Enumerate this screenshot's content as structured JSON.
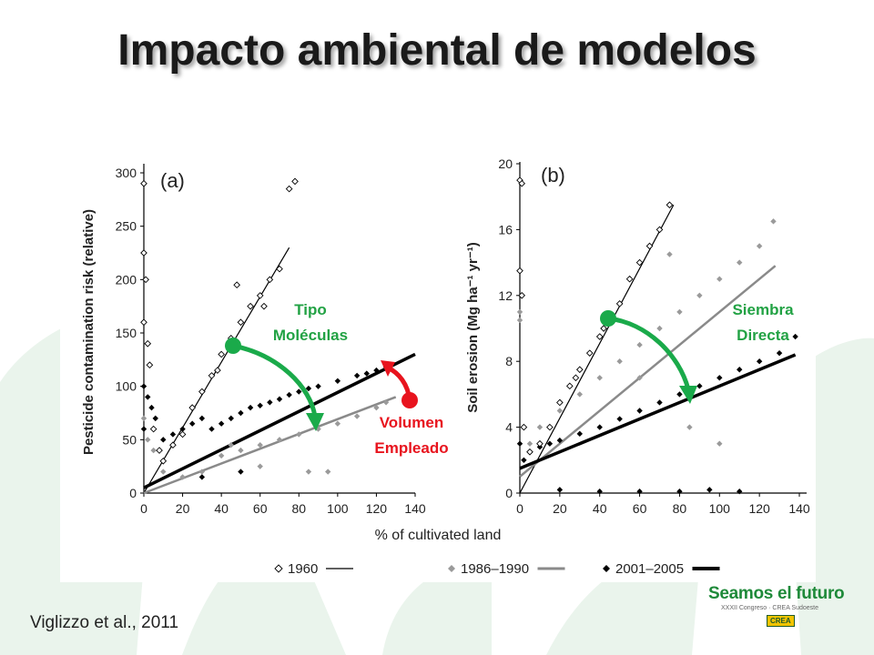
{
  "title": "Impacto ambiental de modelos",
  "citation": "Viglizzo et al., 2011",
  "logo": {
    "main": "Seamos el futuro",
    "sub": "XXXII Congreso · CREA Sudoeste",
    "badge": "CREA"
  },
  "annotations": {
    "tipo": [
      "Tipo",
      "Moléculas"
    ],
    "volumen": [
      "Volumen",
      "Empleado"
    ],
    "siembra": [
      "Siembra",
      "Directa"
    ]
  },
  "colors": {
    "green_arrow": "#1aaa4a",
    "red_arrow": "#e8141e",
    "label_text": "#22a244",
    "volumen_text": "#e8141e",
    "s1960": "#000000",
    "s1986": "#999999",
    "s2001": "#000000"
  },
  "legend": [
    {
      "label": "1960",
      "marker": "open-diamond",
      "line": "thin-black"
    },
    {
      "label": "1986–1990",
      "marker": "grey-diamond",
      "line": "grey"
    },
    {
      "label": "2001–2005",
      "marker": "black-diamond",
      "line": "thick-black"
    }
  ],
  "chart_data": [
    {
      "type": "scatter",
      "panel": "(a)",
      "xlabel": "% of cultivated land",
      "ylabel": "Pesticide contamination risk (relative)",
      "xlim": [
        0,
        140
      ],
      "ylim": [
        0,
        300
      ],
      "xticks": [
        0,
        20,
        40,
        60,
        80,
        100,
        120,
        140
      ],
      "yticks": [
        0,
        50,
        100,
        150,
        200,
        250,
        300
      ],
      "series": [
        {
          "name": "1960",
          "trend": [
            [
              0,
              0
            ],
            [
              75,
              230
            ]
          ],
          "points": [
            [
              0,
              290
            ],
            [
              0,
              225
            ],
            [
              1,
              200
            ],
            [
              0,
              160
            ],
            [
              2,
              140
            ],
            [
              3,
              120
            ],
            [
              5,
              60
            ],
            [
              8,
              40
            ],
            [
              10,
              30
            ],
            [
              15,
              45
            ],
            [
              20,
              55
            ],
            [
              25,
              80
            ],
            [
              30,
              95
            ],
            [
              35,
              110
            ],
            [
              40,
              130
            ],
            [
              45,
              145
            ],
            [
              50,
              160
            ],
            [
              55,
              175
            ],
            [
              60,
              185
            ],
            [
              65,
              200
            ],
            [
              70,
              210
            ],
            [
              75,
              285
            ],
            [
              78,
              292
            ],
            [
              62,
              175
            ],
            [
              48,
              195
            ],
            [
              38,
              115
            ]
          ]
        },
        {
          "name": "1986–1990",
          "trend": [
            [
              0,
              0
            ],
            [
              130,
              90
            ]
          ],
          "points": [
            [
              0,
              70
            ],
            [
              2,
              50
            ],
            [
              5,
              40
            ],
            [
              10,
              20
            ],
            [
              20,
              15
            ],
            [
              30,
              20
            ],
            [
              40,
              35
            ],
            [
              50,
              40
            ],
            [
              60,
              45
            ],
            [
              70,
              50
            ],
            [
              80,
              55
            ],
            [
              90,
              60
            ],
            [
              100,
              65
            ],
            [
              110,
              72
            ],
            [
              120,
              80
            ],
            [
              125,
              85
            ],
            [
              85,
              20
            ],
            [
              95,
              20
            ],
            [
              60,
              25
            ],
            [
              45,
              45
            ]
          ]
        },
        {
          "name": "2001–2005",
          "trend": [
            [
              0,
              5
            ],
            [
              140,
              130
            ]
          ],
          "points": [
            [
              0,
              100
            ],
            [
              0,
              60
            ],
            [
              2,
              90
            ],
            [
              4,
              80
            ],
            [
              6,
              70
            ],
            [
              10,
              50
            ],
            [
              15,
              55
            ],
            [
              20,
              60
            ],
            [
              25,
              65
            ],
            [
              30,
              70
            ],
            [
              35,
              60
            ],
            [
              40,
              65
            ],
            [
              45,
              70
            ],
            [
              50,
              75
            ],
            [
              55,
              80
            ],
            [
              60,
              82
            ],
            [
              65,
              85
            ],
            [
              70,
              88
            ],
            [
              75,
              92
            ],
            [
              80,
              95
            ],
            [
              85,
              98
            ],
            [
              90,
              100
            ],
            [
              100,
              105
            ],
            [
              110,
              110
            ],
            [
              115,
              112
            ],
            [
              120,
              115
            ],
            [
              125,
              118
            ],
            [
              50,
              20
            ],
            [
              30,
              15
            ]
          ]
        }
      ]
    },
    {
      "type": "scatter",
      "panel": "(b)",
      "xlabel": "% of cultivated land",
      "ylabel": "Soil erosion (Mg ha⁻¹ yr⁻¹)",
      "xlim": [
        0,
        140
      ],
      "ylim": [
        0,
        20
      ],
      "xticks": [
        0,
        20,
        40,
        60,
        80,
        100,
        120,
        140
      ],
      "yticks": [
        0,
        4,
        8,
        12,
        16,
        20
      ],
      "series": [
        {
          "name": "1960",
          "trend": [
            [
              0,
              0
            ],
            [
              77,
              17.5
            ]
          ],
          "points": [
            [
              0,
              19
            ],
            [
              1,
              18.8
            ],
            [
              0,
              13.5
            ],
            [
              1,
              12
            ],
            [
              2,
              4
            ],
            [
              5,
              2.5
            ],
            [
              10,
              3
            ],
            [
              15,
              4
            ],
            [
              20,
              5.5
            ],
            [
              25,
              6.5
            ],
            [
              30,
              7.5
            ],
            [
              35,
              8.5
            ],
            [
              40,
              9.5
            ],
            [
              45,
              10.5
            ],
            [
              50,
              11.5
            ],
            [
              55,
              13
            ],
            [
              60,
              14
            ],
            [
              65,
              15
            ],
            [
              70,
              16
            ],
            [
              75,
              17.5
            ],
            [
              28,
              7
            ],
            [
              42,
              10
            ]
          ]
        },
        {
          "name": "1986–1990",
          "trend": [
            [
              0,
              1
            ],
            [
              128,
              13.8
            ]
          ],
          "points": [
            [
              0,
              11
            ],
            [
              0,
              10.5
            ],
            [
              5,
              3
            ],
            [
              10,
              4
            ],
            [
              20,
              5
            ],
            [
              30,
              6
            ],
            [
              40,
              7
            ],
            [
              50,
              8
            ],
            [
              60,
              9
            ],
            [
              70,
              10
            ],
            [
              80,
              11
            ],
            [
              90,
              12
            ],
            [
              100,
              13
            ],
            [
              110,
              14
            ],
            [
              120,
              15
            ],
            [
              127,
              16.5
            ],
            [
              60,
              7
            ],
            [
              75,
              14.5
            ],
            [
              85,
              4
            ],
            [
              100,
              3
            ]
          ]
        },
        {
          "name": "2001–2005",
          "trend": [
            [
              0,
              1.5
            ],
            [
              138,
              8.4
            ]
          ],
          "points": [
            [
              0,
              3
            ],
            [
              2,
              2
            ],
            [
              5,
              2.5
            ],
            [
              10,
              2.8
            ],
            [
              15,
              3
            ],
            [
              20,
              3.2
            ],
            [
              30,
              3.6
            ],
            [
              40,
              4
            ],
            [
              50,
              4.5
            ],
            [
              60,
              5
            ],
            [
              70,
              5.5
            ],
            [
              80,
              6
            ],
            [
              90,
              6.5
            ],
            [
              100,
              7
            ],
            [
              110,
              7.5
            ],
            [
              120,
              8
            ],
            [
              130,
              8.5
            ],
            [
              138,
              9.5
            ],
            [
              20,
              0.2
            ],
            [
              40,
              0.1
            ],
            [
              60,
              0.1
            ],
            [
              80,
              0.1
            ],
            [
              95,
              0.2
            ],
            [
              110,
              0.1
            ]
          ]
        }
      ]
    }
  ]
}
